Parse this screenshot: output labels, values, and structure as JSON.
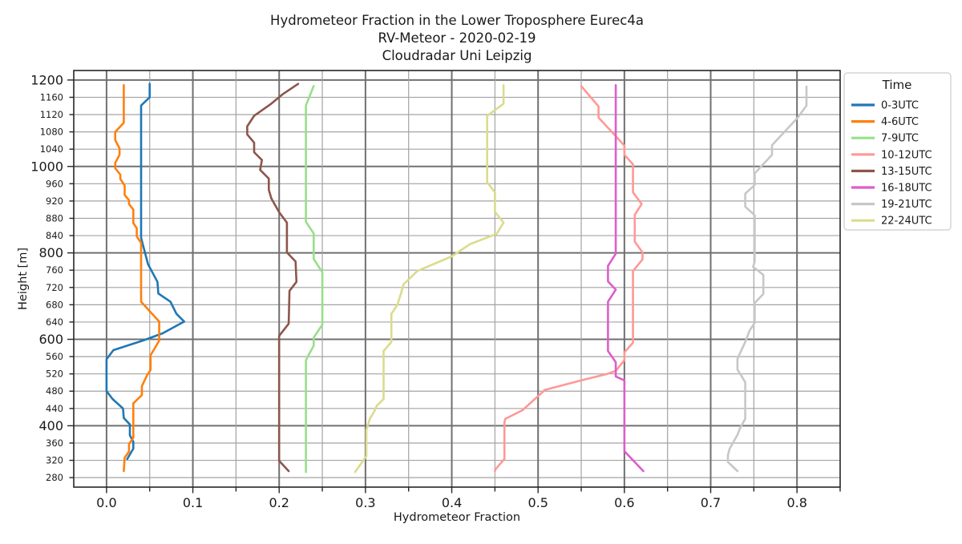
{
  "title": {
    "line1": "Hydrometeor Fraction in the Lower Troposphere Eurec4a",
    "line2": "RV-Meteor - 2020-02-19",
    "line3": "Cloudradar Uni Leipzig"
  },
  "axes": {
    "x_label": "Hydrometeor Fraction",
    "y_label": "Height [m]"
  },
  "legend": {
    "title": "Time",
    "entries": [
      "0-3UTC",
      "4-6UTC",
      "7-9UTC",
      "10-12UTC",
      "13-15UTC",
      "16-18UTC",
      "19-21UTC",
      "22-24UTC"
    ]
  },
  "chart_data": {
    "type": "line",
    "title": "Hydrometeor Fraction in the Lower Troposphere Eurec4a / RV-Meteor - 2020-02-19 / Cloudradar Uni Leipzig",
    "xlabel": "Hydrometeor Fraction",
    "ylabel": "Height [m]",
    "xlim": [
      -0.038,
      0.85
    ],
    "ylim": [
      258,
      1222
    ],
    "x_major_ticks": [
      0.0,
      0.1,
      0.2,
      0.3,
      0.4,
      0.5,
      0.6,
      0.7,
      0.8
    ],
    "x_minor_step": 0.05,
    "y_ticks": [
      280,
      320,
      360,
      400,
      440,
      480,
      520,
      560,
      600,
      640,
      680,
      720,
      760,
      800,
      840,
      880,
      920,
      960,
      1000,
      1040,
      1080,
      1120,
      1160,
      1200
    ],
    "y_major_ticks": [
      400,
      600,
      800,
      1000,
      1200
    ],
    "grid": "major+minor",
    "legend_position": "upper right outside",
    "series": [
      {
        "name": "0-3UTC",
        "color": "#1f77b4",
        "points": [
          [
            0.05,
            1191
          ],
          [
            0.05,
            1160
          ],
          [
            0.04,
            1141
          ],
          [
            0.04,
            835
          ],
          [
            0.048,
            774
          ],
          [
            0.059,
            733
          ],
          [
            0.06,
            706
          ],
          [
            0.074,
            687
          ],
          [
            0.081,
            659
          ],
          [
            0.09,
            641
          ],
          [
            0.065,
            614
          ],
          [
            0.042,
            597
          ],
          [
            0.008,
            575
          ],
          [
            0.0,
            554
          ],
          [
            0.0,
            480
          ],
          [
            0.007,
            462
          ],
          [
            0.019,
            440
          ],
          [
            0.02,
            418
          ],
          [
            0.027,
            403
          ],
          [
            0.027,
            378
          ],
          [
            0.031,
            363
          ],
          [
            0.031,
            347
          ],
          [
            0.024,
            323
          ]
        ]
      },
      {
        "name": "4-6UTC",
        "color": "#ff7f0e",
        "points": [
          [
            0.02,
            1188
          ],
          [
            0.02,
            1101
          ],
          [
            0.01,
            1080
          ],
          [
            0.01,
            1061
          ],
          [
            0.015,
            1042
          ],
          [
            0.015,
            1027
          ],
          [
            0.01,
            1008
          ],
          [
            0.01,
            996
          ],
          [
            0.016,
            981
          ],
          [
            0.016,
            971
          ],
          [
            0.021,
            956
          ],
          [
            0.021,
            934
          ],
          [
            0.026,
            922
          ],
          [
            0.026,
            913
          ],
          [
            0.031,
            900
          ],
          [
            0.031,
            869
          ],
          [
            0.035,
            857
          ],
          [
            0.035,
            838
          ],
          [
            0.04,
            823
          ],
          [
            0.04,
            687
          ],
          [
            0.061,
            641
          ],
          [
            0.061,
            597
          ],
          [
            0.051,
            563
          ],
          [
            0.051,
            529
          ],
          [
            0.047,
            517
          ],
          [
            0.041,
            492
          ],
          [
            0.041,
            471
          ],
          [
            0.031,
            452
          ],
          [
            0.031,
            372
          ],
          [
            0.026,
            358
          ],
          [
            0.026,
            340
          ],
          [
            0.021,
            326
          ],
          [
            0.02,
            295
          ]
        ]
      },
      {
        "name": "7-9UTC",
        "color": "#98df8a",
        "points": [
          [
            0.24,
            1186
          ],
          [
            0.231,
            1141
          ],
          [
            0.231,
            872
          ],
          [
            0.24,
            845
          ],
          [
            0.24,
            786
          ],
          [
            0.25,
            755
          ],
          [
            0.25,
            634
          ],
          [
            0.24,
            604
          ],
          [
            0.24,
            585
          ],
          [
            0.233,
            560
          ],
          [
            0.231,
            551
          ],
          [
            0.231,
            293
          ]
        ]
      },
      {
        "name": "10-12UTC",
        "color": "#ff9896",
        "points": [
          [
            0.55,
            1186
          ],
          [
            0.57,
            1139
          ],
          [
            0.57,
            1113
          ],
          [
            0.59,
            1070
          ],
          [
            0.6,
            1048
          ],
          [
            0.6,
            1027
          ],
          [
            0.61,
            1005
          ],
          [
            0.61,
            940
          ],
          [
            0.62,
            913
          ],
          [
            0.612,
            888
          ],
          [
            0.612,
            826
          ],
          [
            0.621,
            801
          ],
          [
            0.621,
            785
          ],
          [
            0.61,
            758
          ],
          [
            0.61,
            592
          ],
          [
            0.6,
            570
          ],
          [
            0.6,
            552
          ],
          [
            0.59,
            527
          ],
          [
            0.58,
            520
          ],
          [
            0.55,
            505
          ],
          [
            0.508,
            483
          ],
          [
            0.482,
            436
          ],
          [
            0.462,
            416
          ],
          [
            0.461,
            408
          ],
          [
            0.461,
            323
          ],
          [
            0.451,
            300
          ],
          [
            0.45,
            295
          ]
        ]
      },
      {
        "name": "13-15UTC",
        "color": "#8c564b",
        "points": [
          [
            0.222,
            1191
          ],
          [
            0.204,
            1167
          ],
          [
            0.19,
            1144
          ],
          [
            0.171,
            1117
          ],
          [
            0.163,
            1093
          ],
          [
            0.163,
            1074
          ],
          [
            0.171,
            1055
          ],
          [
            0.171,
            1033
          ],
          [
            0.18,
            1015
          ],
          [
            0.178,
            992
          ],
          [
            0.188,
            972
          ],
          [
            0.188,
            946
          ],
          [
            0.191,
            926
          ],
          [
            0.2,
            894
          ],
          [
            0.209,
            870
          ],
          [
            0.209,
            801
          ],
          [
            0.219,
            780
          ],
          [
            0.22,
            733
          ],
          [
            0.212,
            712
          ],
          [
            0.211,
            636
          ],
          [
            0.2,
            608
          ],
          [
            0.2,
            319
          ],
          [
            0.211,
            295
          ]
        ]
      },
      {
        "name": "16-18UTC",
        "color": "#dd5ec9",
        "points": [
          [
            0.59,
            1188
          ],
          [
            0.59,
            798
          ],
          [
            0.581,
            770
          ],
          [
            0.581,
            734
          ],
          [
            0.59,
            715
          ],
          [
            0.581,
            687
          ],
          [
            0.581,
            573
          ],
          [
            0.59,
            547
          ],
          [
            0.59,
            514
          ],
          [
            0.6,
            505
          ],
          [
            0.6,
            341
          ],
          [
            0.622,
            295
          ]
        ]
      },
      {
        "name": "19-21UTC",
        "color": "#c7c7c7",
        "points": [
          [
            0.811,
            1185
          ],
          [
            0.811,
            1141
          ],
          [
            0.801,
            1113
          ],
          [
            0.771,
            1049
          ],
          [
            0.771,
            1027
          ],
          [
            0.751,
            984
          ],
          [
            0.751,
            957
          ],
          [
            0.74,
            937
          ],
          [
            0.74,
            907
          ],
          [
            0.751,
            887
          ],
          [
            0.751,
            779
          ],
          [
            0.749,
            768
          ],
          [
            0.761,
            749
          ],
          [
            0.761,
            705
          ],
          [
            0.751,
            684
          ],
          [
            0.751,
            638
          ],
          [
            0.745,
            620
          ],
          [
            0.74,
            594
          ],
          [
            0.731,
            555
          ],
          [
            0.731,
            530
          ],
          [
            0.74,
            501
          ],
          [
            0.74,
            416
          ],
          [
            0.734,
            394
          ],
          [
            0.731,
            379
          ],
          [
            0.722,
            347
          ],
          [
            0.72,
            332
          ],
          [
            0.72,
            316
          ],
          [
            0.731,
            295
          ]
        ]
      },
      {
        "name": "22-24UTC",
        "color": "#dbdb8d",
        "points": [
          [
            0.46,
            1188
          ],
          [
            0.46,
            1145
          ],
          [
            0.441,
            1117
          ],
          [
            0.441,
            963
          ],
          [
            0.45,
            940
          ],
          [
            0.45,
            895
          ],
          [
            0.46,
            870
          ],
          [
            0.452,
            844
          ],
          [
            0.421,
            820
          ],
          [
            0.4,
            792
          ],
          [
            0.36,
            758
          ],
          [
            0.344,
            727
          ],
          [
            0.341,
            705
          ],
          [
            0.337,
            680
          ],
          [
            0.33,
            659
          ],
          [
            0.33,
            594
          ],
          [
            0.321,
            573
          ],
          [
            0.321,
            462
          ],
          [
            0.313,
            446
          ],
          [
            0.31,
            432
          ],
          [
            0.305,
            416
          ],
          [
            0.301,
            390
          ],
          [
            0.301,
            330
          ],
          [
            0.288,
            293
          ]
        ]
      }
    ]
  }
}
